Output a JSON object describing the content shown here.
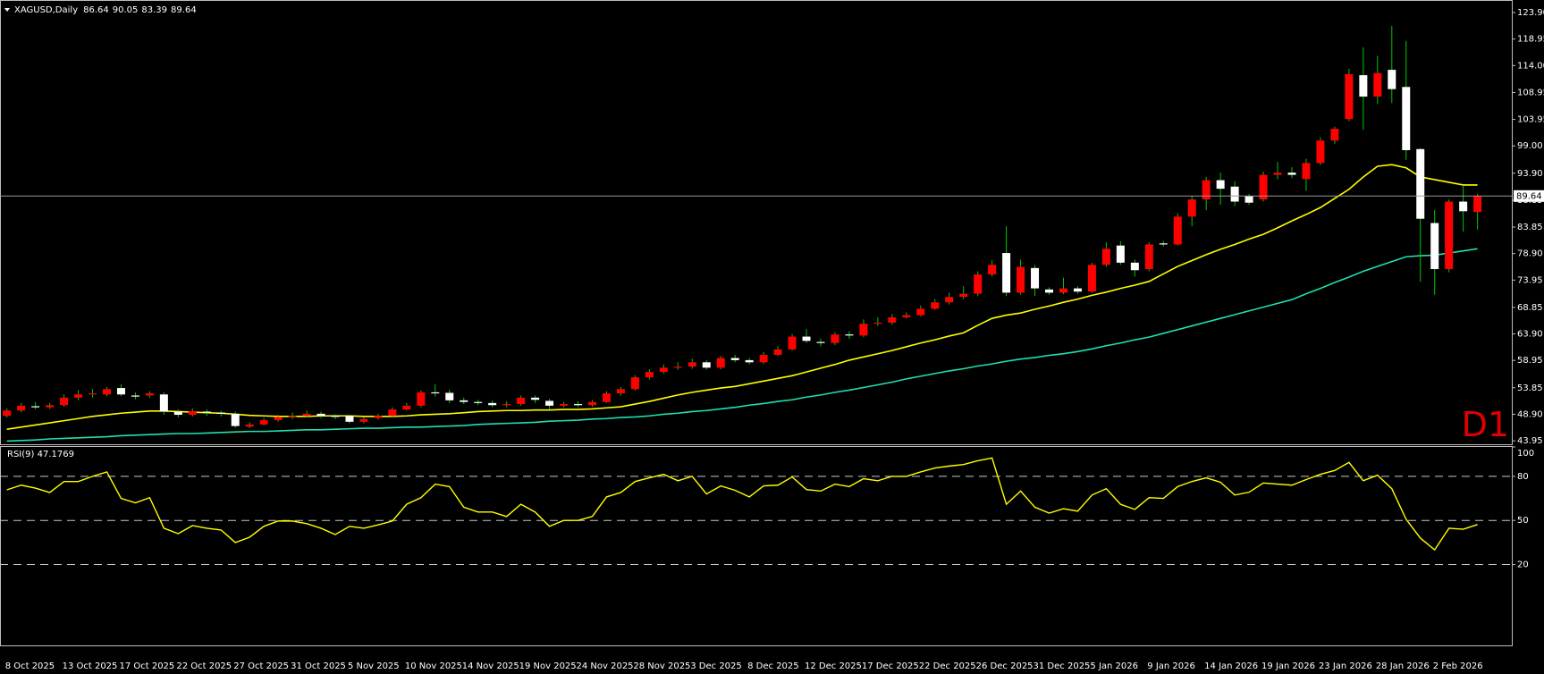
{
  "chart_data": [
    {
      "type": "candlestick",
      "title": "XAGUSD,Daily",
      "timeframe": "D1",
      "categories": [
        "8 Oct 2025",
        null,
        null,
        null,
        "13 Oct 2025",
        null,
        null,
        null,
        "17 Oct 2025",
        null,
        null,
        null,
        "22 Oct 2025",
        null,
        null,
        null,
        "27 Oct 2025",
        null,
        null,
        null,
        "31 Oct 2025",
        null,
        null,
        null,
        "5 Nov 2025",
        null,
        null,
        null,
        "10 Nov 2025",
        null,
        null,
        null,
        "14 Nov 2025",
        null,
        null,
        null,
        "19 Nov 2025",
        null,
        null,
        null,
        "24 Nov 2025",
        null,
        null,
        null,
        "28 Nov 2025",
        null,
        null,
        null,
        "3 Dec 2025",
        null,
        null,
        null,
        "8 Dec 2025",
        null,
        null,
        null,
        "12 Dec 2025",
        null,
        null,
        null,
        "17 Dec 2025",
        null,
        null,
        null,
        "22 Dec 2025",
        null,
        null,
        null,
        "26 Dec 2025",
        null,
        null,
        null,
        "31 Dec 2025",
        null,
        null,
        null,
        "5 Jan 2026",
        null,
        null,
        null,
        "9 Jan 2026",
        null,
        null,
        null,
        "14 Jan 2026",
        null,
        null,
        null,
        "19 Jan 2026",
        null,
        null,
        null,
        "23 Jan 2026",
        null,
        null,
        null,
        "28 Jan 2026",
        null,
        null,
        null,
        "2 Feb 2026",
        null,
        null,
        null
      ],
      "open": [
        48.6,
        49.6,
        50.4,
        50.2,
        50.6,
        52.0,
        52.6,
        52.6,
        53.8,
        52.4,
        52.4,
        52.6,
        49.4,
        48.8,
        49.4,
        49.2,
        49.0,
        46.6,
        47.0,
        47.8,
        48.4,
        48.6,
        49.0,
        48.6,
        48.6,
        47.5,
        48.2,
        48.6,
        49.8,
        50.5,
        53.0,
        52.9,
        51.5,
        51.2,
        51.0,
        50.6,
        50.8,
        52.0,
        51.4,
        50.5,
        50.8,
        50.6,
        51.2,
        52.8,
        53.6,
        55.8,
        56.8,
        57.6,
        57.8,
        58.6,
        57.6,
        59.4,
        59.0,
        58.6,
        60.0,
        61.0,
        63.4,
        62.4,
        62.2,
        63.8,
        63.6,
        65.8,
        66.0,
        67.0,
        67.4,
        68.6,
        69.8,
        70.8,
        71.4,
        75.0,
        79.0,
        71.6,
        76.2,
        72.2,
        71.6,
        72.4,
        71.8,
        76.8,
        80.4,
        77.2,
        76.0,
        80.8,
        80.6,
        85.8,
        89.0,
        92.6,
        91.4,
        89.6,
        89.0,
        93.6,
        94.0,
        92.8,
        95.8,
        100.0,
        104.0,
        112.2,
        108.2,
        113.2,
        110.0,
        98.4,
        84.6,
        76.0,
        88.6,
        86.64
      ],
      "high": [
        50.0,
        51.0,
        51.2,
        51.0,
        52.6,
        53.4,
        53.6,
        54.0,
        54.5,
        53.0,
        53.2,
        53.0,
        49.8,
        50.0,
        49.8,
        49.6,
        49.4,
        47.4,
        48.2,
        48.8,
        49.2,
        49.6,
        49.4,
        48.9,
        48.8,
        48.4,
        49.0,
        50.2,
        51.0,
        53.4,
        54.5,
        53.5,
        52.0,
        51.6,
        51.5,
        51.3,
        52.4,
        52.4,
        51.8,
        51.2,
        51.3,
        51.6,
        53.2,
        54.0,
        56.2,
        57.3,
        58.2,
        58.6,
        59.3,
        59.0,
        59.8,
        60.0,
        59.4,
        60.5,
        61.6,
        63.9,
        64.8,
        63.0,
        64.2,
        64.4,
        66.6,
        67.0,
        67.6,
        67.9,
        69.2,
        70.4,
        71.6,
        72.8,
        75.6,
        77.6,
        84.0,
        77.8,
        76.8,
        72.6,
        74.4,
        72.8,
        77.2,
        81.0,
        81.2,
        77.8,
        81.0,
        81.3,
        86.4,
        89.6,
        93.2,
        94.0,
        92.4,
        90.0,
        94.2,
        96.0,
        95.0,
        96.6,
        100.6,
        102.6,
        113.4,
        117.4,
        115.8,
        121.4,
        118.6,
        98.6,
        87.0,
        89.0,
        91.6,
        90.05
      ],
      "low": [
        48.3,
        49.3,
        49.8,
        49.9,
        50.3,
        51.5,
        52.0,
        52.3,
        52.3,
        51.7,
        52.0,
        48.8,
        48.3,
        48.5,
        48.6,
        48.5,
        46.4,
        46.3,
        46.8,
        47.5,
        48.0,
        48.3,
        48.2,
        48.0,
        47.2,
        47.2,
        47.9,
        48.3,
        49.6,
        50.2,
        52.2,
        51.0,
        50.8,
        50.6,
        50.2,
        50.2,
        50.5,
        51.0,
        49.8,
        50.2,
        50.2,
        50.3,
        51.0,
        52.4,
        53.3,
        55.4,
        56.5,
        57.2,
        57.4,
        57.2,
        57.3,
        58.6,
        58.2,
        58.3,
        59.8,
        60.8,
        62.2,
        61.6,
        61.8,
        63.0,
        63.3,
        65.4,
        65.6,
        66.8,
        67.2,
        68.4,
        69.4,
        70.4,
        71.0,
        74.6,
        71.0,
        71.2,
        71.0,
        71.2,
        71.3,
        71.4,
        71.6,
        76.4,
        76.8,
        74.6,
        75.6,
        80.2,
        80.4,
        84.0,
        87.0,
        88.0,
        87.8,
        88.0,
        88.6,
        92.8,
        93.0,
        90.6,
        95.4,
        99.4,
        103.6,
        102.0,
        106.8,
        107.0,
        96.4,
        73.6,
        71.2,
        75.4,
        83.0,
        83.39
      ],
      "close": [
        49.6,
        50.5,
        50.2,
        50.6,
        52.0,
        52.6,
        52.8,
        53.6,
        52.6,
        52.2,
        52.8,
        49.4,
        48.8,
        49.5,
        49.2,
        49.0,
        46.7,
        47.0,
        47.8,
        48.4,
        48.6,
        49.0,
        48.6,
        48.4,
        47.5,
        48.0,
        48.6,
        49.8,
        50.5,
        53.0,
        52.8,
        51.5,
        51.2,
        51.0,
        50.6,
        50.8,
        52.0,
        51.6,
        50.5,
        50.8,
        50.6,
        51.2,
        52.8,
        53.6,
        55.8,
        56.8,
        57.6,
        57.8,
        58.6,
        57.6,
        59.4,
        59.0,
        58.6,
        60.0,
        61.0,
        63.4,
        62.6,
        62.2,
        63.8,
        63.6,
        65.8,
        66.0,
        67.0,
        67.4,
        68.6,
        69.8,
        70.8,
        71.4,
        75.0,
        76.8,
        71.6,
        76.4,
        72.4,
        71.6,
        72.4,
        71.8,
        76.8,
        79.8,
        77.2,
        75.8,
        80.6,
        80.6,
        85.8,
        89.0,
        92.6,
        91.0,
        88.6,
        88.4,
        93.6,
        94.0,
        93.6,
        95.8,
        100.0,
        102.2,
        112.4,
        108.2,
        112.6,
        109.6,
        98.2,
        85.4,
        76.0,
        88.6,
        86.8,
        89.64
      ],
      "up_color": "#ff0000",
      "down_color": "#ffffff",
      "wick_color": "#00c800",
      "series": [
        {
          "color": "#ffff00",
          "values": [
            46.1,
            46.5,
            46.9,
            47.3,
            47.7,
            48.1,
            48.5,
            48.8,
            49.1,
            49.3,
            49.5,
            49.5,
            49.4,
            49.3,
            49.2,
            49.1,
            48.9,
            48.7,
            48.6,
            48.5,
            48.5,
            48.5,
            48.6,
            48.6,
            48.6,
            48.5,
            48.5,
            48.5,
            48.6,
            48.8,
            48.9,
            49.0,
            49.2,
            49.4,
            49.5,
            49.6,
            49.6,
            49.7,
            49.7,
            49.8,
            49.8,
            49.9,
            50.1,
            50.3,
            50.8,
            51.3,
            51.9,
            52.5,
            53.0,
            53.4,
            53.8,
            54.1,
            54.6,
            55.1,
            55.6,
            56.1,
            56.8,
            57.5,
            58.2,
            59.0,
            59.6,
            60.2,
            60.8,
            61.5,
            62.2,
            62.8,
            63.5,
            64.1,
            65.5,
            66.8,
            67.4,
            67.8,
            68.5,
            69.1,
            69.8,
            70.4,
            71.1,
            71.7,
            72.4,
            73.0,
            73.7,
            75.1,
            76.5,
            77.6,
            78.7,
            79.7,
            80.6,
            81.6,
            82.5,
            83.7,
            85.0,
            86.2,
            87.5,
            89.2,
            90.9,
            93.2,
            95.2,
            95.5,
            94.9,
            93.2,
            92.7,
            92.2,
            91.7,
            91.7
          ]
        },
        {
          "color": "#20e0b0",
          "values": [
            43.9,
            44.0,
            44.1,
            44.3,
            44.4,
            44.5,
            44.6,
            44.7,
            44.9,
            45.0,
            45.1,
            45.2,
            45.3,
            45.3,
            45.4,
            45.5,
            45.6,
            45.7,
            45.7,
            45.8,
            45.9,
            46.0,
            46.0,
            46.1,
            46.2,
            46.3,
            46.3,
            46.4,
            46.5,
            46.5,
            46.6,
            46.7,
            46.8,
            47.0,
            47.1,
            47.2,
            47.3,
            47.4,
            47.6,
            47.7,
            47.8,
            48.0,
            48.1,
            48.3,
            48.4,
            48.6,
            48.9,
            49.1,
            49.4,
            49.6,
            49.9,
            50.2,
            50.6,
            50.9,
            51.3,
            51.6,
            52.1,
            52.5,
            53.0,
            53.4,
            53.9,
            54.4,
            54.9,
            55.5,
            56.0,
            56.5,
            57.0,
            57.4,
            57.9,
            58.3,
            58.8,
            59.2,
            59.5,
            59.9,
            60.2,
            60.6,
            61.1,
            61.7,
            62.2,
            62.8,
            63.3,
            64.0,
            64.7,
            65.4,
            66.1,
            66.8,
            67.5,
            68.2,
            68.9,
            69.6,
            70.3,
            71.4,
            72.4,
            73.5,
            74.5,
            75.6,
            76.5,
            77.4,
            78.3,
            78.5,
            78.6,
            79.0,
            79.4,
            79.8
          ]
        }
      ],
      "ylim": [
        43.3,
        125.4
      ],
      "yticks": [
        {
          "value": 123.9,
          "label": "123.90"
        },
        {
          "value": 118.95,
          "label": "118.95"
        },
        {
          "value": 114,
          "label": "114.00"
        },
        {
          "value": 108.95,
          "label": "108.95"
        },
        {
          "value": 103.95,
          "label": "103.95"
        },
        {
          "value": 99,
          "label": "99.00"
        },
        {
          "value": 93.9,
          "label": "93.90"
        },
        {
          "value": 88.85,
          "label": "88.85"
        },
        {
          "value": 83.85,
          "label": "83.85"
        },
        {
          "value": 78.9,
          "label": "78.90"
        },
        {
          "value": 73.95,
          "label": "73.95"
        },
        {
          "value": 68.85,
          "label": "68.85"
        },
        {
          "value": 63.9,
          "label": "63.90"
        },
        {
          "value": 58.95,
          "label": "58.95"
        },
        {
          "value": 53.85,
          "label": "53.85"
        },
        {
          "value": 48.9,
          "label": "48.90"
        },
        {
          "value": 43.95,
          "label": "43.95"
        }
      ],
      "grid": false
    },
    {
      "type": "line",
      "title": "RSI(9) 47.1769",
      "color": "#ffff00",
      "values": [
        70.8,
        74,
        72,
        69,
        76.5,
        76.5,
        80,
        83,
        65,
        62,
        65.5,
        44.7,
        41,
        46.5,
        44.7,
        43.5,
        35,
        38.6,
        46,
        49.6,
        49.6,
        47.8,
        44.7,
        40.4,
        46,
        44.7,
        47,
        49.6,
        61,
        65.5,
        74.7,
        73,
        59,
        55.7,
        55.7,
        52.7,
        61,
        55.7,
        46,
        50,
        50,
        52.7,
        66,
        69,
        76.5,
        79,
        81.4,
        77,
        80,
        68,
        73.5,
        70.5,
        66,
        73.5,
        74,
        79.6,
        71,
        70,
        74.7,
        73,
        78.4,
        77,
        80,
        80,
        83,
        85.7,
        87,
        88,
        90.6,
        92.5,
        61,
        70,
        59,
        55,
        58,
        56.3,
        67.3,
        71.6,
        61,
        57.5,
        65.5,
        65,
        73,
        76.5,
        79,
        76,
        67.3,
        69.2,
        75.5,
        74.7,
        74,
        77.8,
        81.4,
        84,
        89.5,
        77,
        80.8,
        71.6,
        50.8,
        38,
        30,
        44.7,
        44,
        47.2
      ],
      "ylim": [
        -35,
        100
      ],
      "yticks": [
        100,
        80,
        50,
        20
      ],
      "levels": [
        20,
        50,
        80
      ]
    }
  ]
}
